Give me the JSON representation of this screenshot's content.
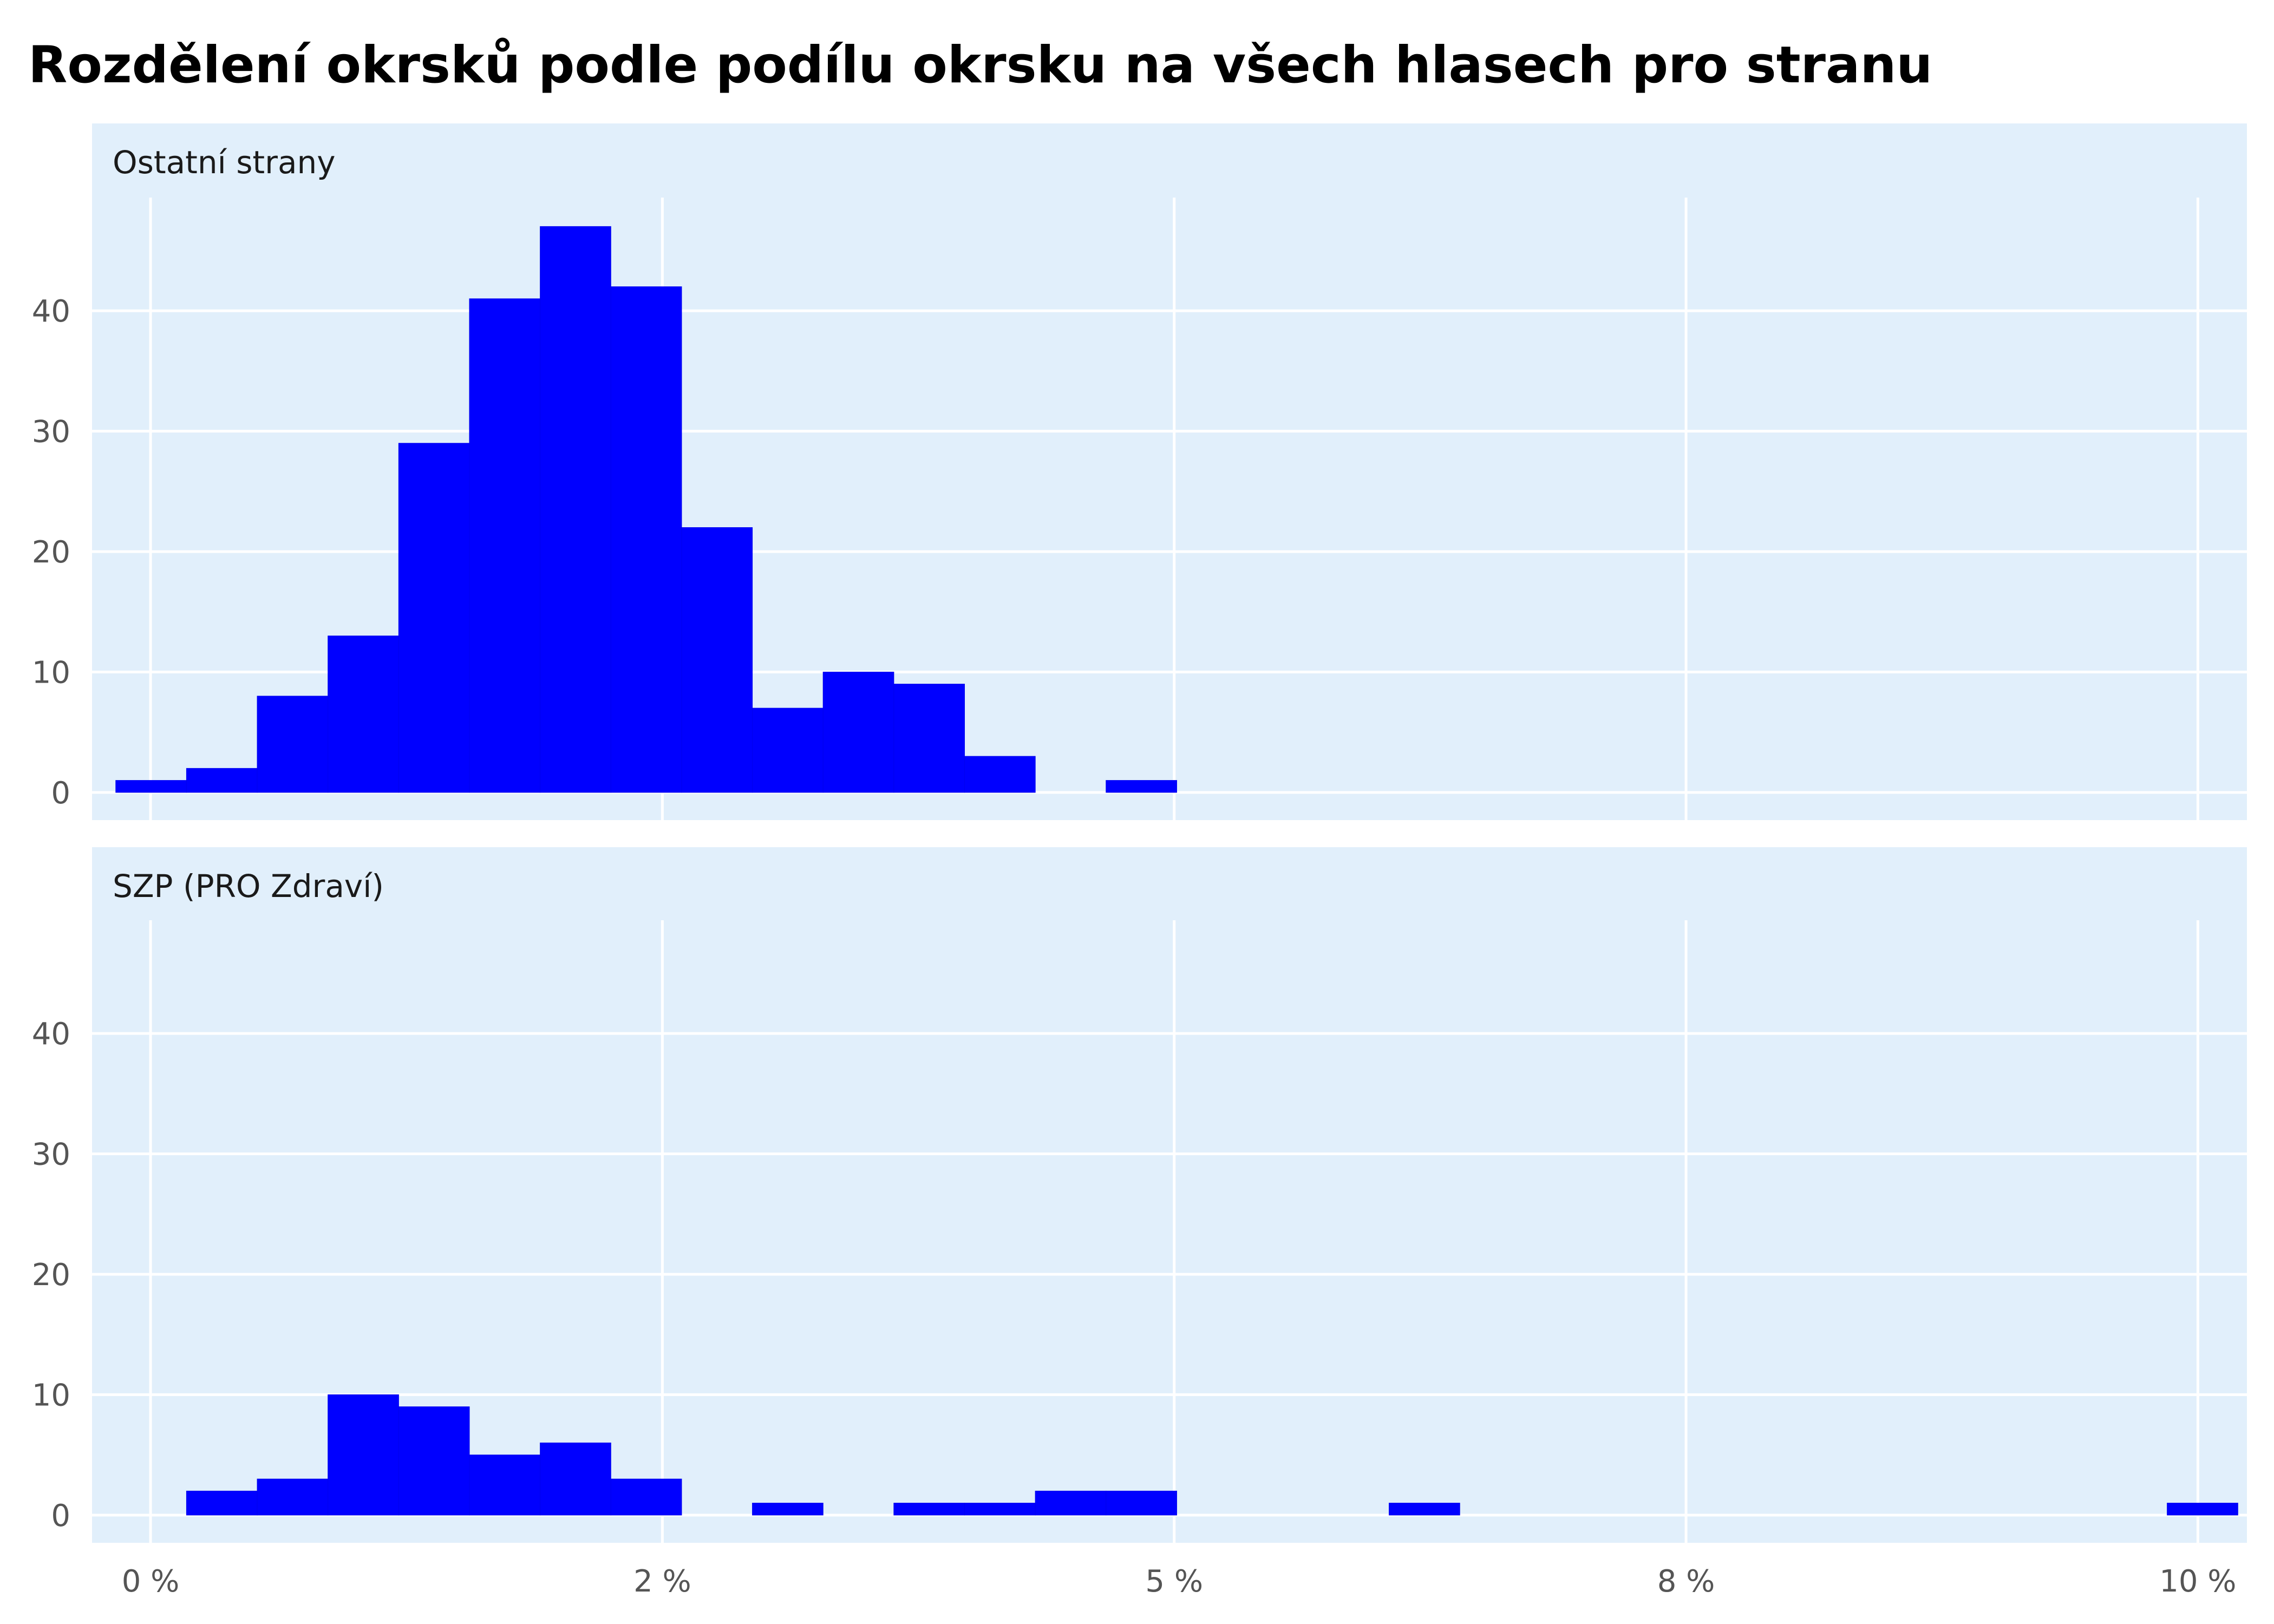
{
  "colors": {
    "panel_background": "#e1effb",
    "bar": "#0000ff",
    "grid": "#ffffff"
  },
  "chart_data": {
    "type": "bar",
    "title": "Rozdělení okrsků podle podílu okrsku na všech hlasech pro stranu",
    "xlabel": "",
    "ylabel": "",
    "x_ticks": [
      {
        "value": 0.0,
        "label": "0 %"
      },
      {
        "value": 2.5,
        "label": "2 %"
      },
      {
        "value": 5.0,
        "label": "5 %"
      },
      {
        "value": 7.5,
        "label": "8 %"
      },
      {
        "value": 10.0,
        "label": "10 %"
      }
    ],
    "y_ticks": [
      0,
      10,
      20,
      30,
      40
    ],
    "xlim": [
      -0.18,
      10.2
    ],
    "ylim": [
      -2.3,
      49.4
    ],
    "bin_width": 0.3455,
    "grid": true,
    "panels": [
      {
        "label": "Ostatní strany",
        "bins": [
          {
            "x0": -0.17,
            "count": 1
          },
          {
            "x0": 0.1755,
            "count": 2
          },
          {
            "x0": 0.521,
            "count": 8
          },
          {
            "x0": 0.8665,
            "count": 13
          },
          {
            "x0": 1.212,
            "count": 29
          },
          {
            "x0": 1.5575,
            "count": 41
          },
          {
            "x0": 1.903,
            "count": 47
          },
          {
            "x0": 2.2485,
            "count": 42
          },
          {
            "x0": 2.594,
            "count": 22
          },
          {
            "x0": 2.9395,
            "count": 7
          },
          {
            "x0": 3.285,
            "count": 10
          },
          {
            "x0": 3.6305,
            "count": 9
          },
          {
            "x0": 3.976,
            "count": 3
          },
          {
            "x0": 4.667,
            "count": 1
          }
        ]
      },
      {
        "label": "SZP (PRO Zdraví)",
        "bins": [
          {
            "x0": 0.1755,
            "count": 2
          },
          {
            "x0": 0.521,
            "count": 3
          },
          {
            "x0": 0.8665,
            "count": 10
          },
          {
            "x0": 1.212,
            "count": 9
          },
          {
            "x0": 1.5575,
            "count": 5
          },
          {
            "x0": 1.903,
            "count": 6
          },
          {
            "x0": 2.2485,
            "count": 3
          },
          {
            "x0": 2.9395,
            "count": 1
          },
          {
            "x0": 3.6305,
            "count": 1
          },
          {
            "x0": 3.976,
            "count": 1
          },
          {
            "x0": 4.3215,
            "count": 2
          },
          {
            "x0": 4.667,
            "count": 2
          },
          {
            "x0": 6.0495,
            "count": 1
          },
          {
            "x0": 9.85,
            "count": 1
          }
        ]
      }
    ]
  }
}
